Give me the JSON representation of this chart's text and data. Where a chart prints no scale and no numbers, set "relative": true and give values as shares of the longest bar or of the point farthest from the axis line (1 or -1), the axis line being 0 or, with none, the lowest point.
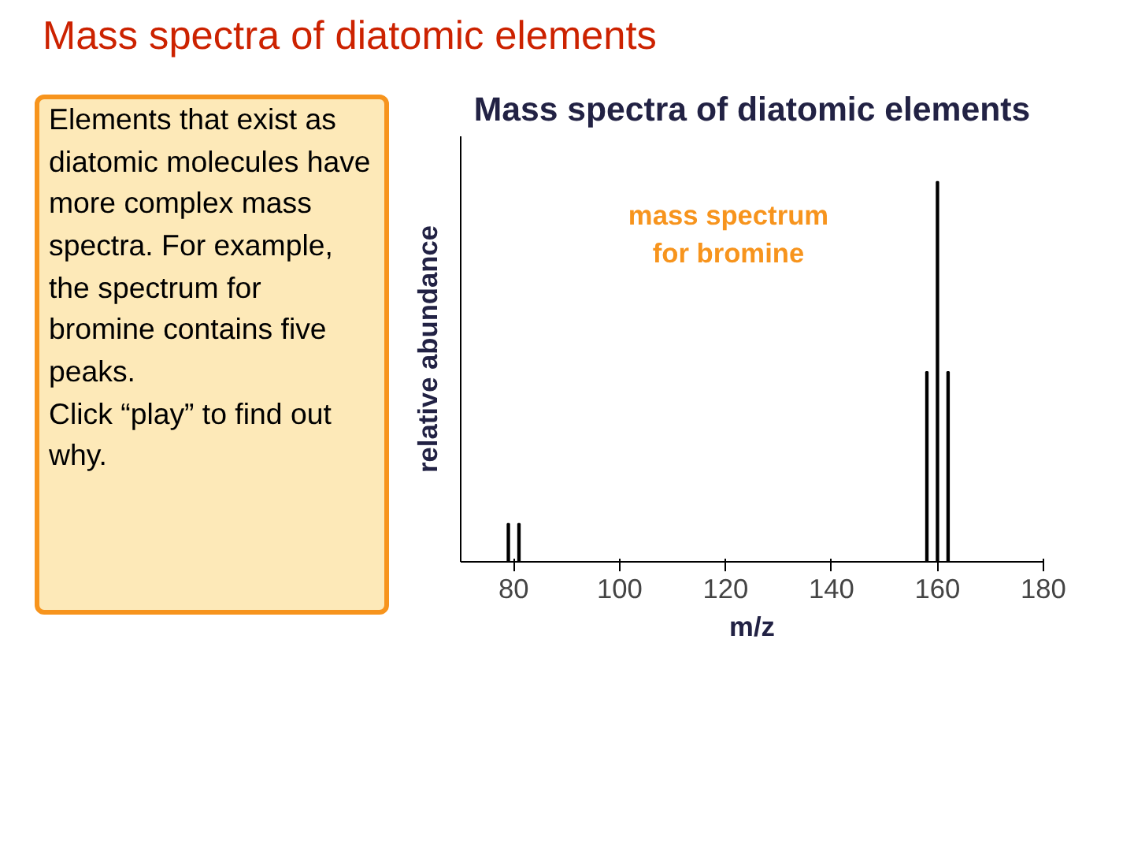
{
  "chart_data": {
    "type": "bar",
    "title": "Mass spectra of diatomic elements",
    "xlabel": "m/z",
    "ylabel": "relative abundance",
    "relative": true,
    "x": [
      79,
      81,
      158,
      160,
      162
    ],
    "values": [
      0.1,
      0.1,
      0.5,
      1,
      0.5
    ],
    "color": "#000000",
    "xlim": [
      70,
      180
    ],
    "xticks": [
      80,
      100,
      120,
      140,
      160,
      180
    ],
    "grid": false,
    "annotations": [
      "Mass spectra of diatomic elements",
      "mass spectrum for bromine",
      "Elements that exist as diatomic molecules have more complex mass spectra. For example, the spectrum for bromine contains five peaks.",
      "Click “play” to find out why."
    ]
  }
}
